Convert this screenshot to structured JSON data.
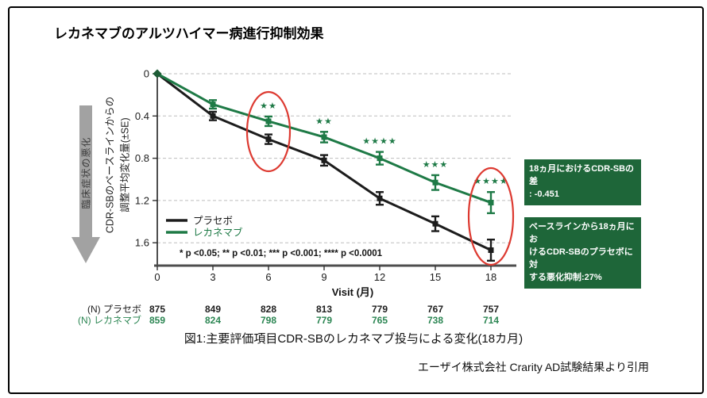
{
  "title": "レカネマブのアルツハイマー病進行抑制効果",
  "left_arrow_label": "臨床症状の悪化",
  "colors": {
    "placebo_black": "#1c1c1c",
    "lecanemab_green": "#1e7a46",
    "box_green": "#1e6639",
    "highlight_red": "#dd3a31",
    "arrow_gray": "#a2a2a2",
    "grid_gray": "#bdbdbd",
    "axis_gray": "#4e4e4e",
    "n_row_green": "#2c8653"
  },
  "chart_data": {
    "type": "line",
    "x": [
      0,
      3,
      6,
      9,
      12,
      15,
      18
    ],
    "xlabel": "Visit (月)",
    "ylabel": "CDR-SBのベースラインからの\n調整平均変化量(±SE)",
    "y_inverted": true,
    "ylim": [
      0,
      1.82
    ],
    "yticks": [
      0,
      0.4,
      0.8,
      1.2,
      1.6
    ],
    "grid": "horizontal-dashed",
    "legend_position": "inside-lower-left",
    "series": [
      {
        "name": "プラセボ",
        "color": "#1c1c1c",
        "values": [
          0,
          0.4,
          0.62,
          0.82,
          1.18,
          1.42,
          1.67
        ],
        "se": [
          0,
          0.04,
          0.045,
          0.05,
          0.06,
          0.07,
          0.1
        ]
      },
      {
        "name": "レカネマブ",
        "color": "#1e7a46",
        "values": [
          0,
          0.29,
          0.45,
          0.6,
          0.8,
          1.03,
          1.22
        ],
        "se": [
          0,
          0.04,
          0.045,
          0.05,
          0.06,
          0.07,
          0.1
        ]
      }
    ],
    "significance": [
      {
        "month": 6,
        "stars": 2
      },
      {
        "month": 9,
        "stars": 2
      },
      {
        "month": 12,
        "stars": 4
      },
      {
        "month": 15,
        "stars": 3
      },
      {
        "month": 18,
        "stars": 4
      }
    ],
    "star_char": "★",
    "highlight_months": [
      6,
      18
    ],
    "p_note": "* p <0.05; ** p <0.01; *** p <0.001; **** p <0.0001",
    "n_table": {
      "rows": [
        {
          "label": "(N) プラセボ",
          "color": "#1d1d1d",
          "values": [
            875,
            849,
            828,
            813,
            779,
            767,
            757
          ]
        },
        {
          "label": "(N) レカネマブ",
          "color": "#2c8653",
          "values": [
            859,
            824,
            798,
            779,
            765,
            738,
            714
          ]
        }
      ]
    }
  },
  "annotations": {
    "box1": "18ヵ月におけるCDR-SBの差\n: -0.451",
    "box2": "ベースラインから18ヵ月にお\nけるCDR-SBのプラセボに対\nする悪化抑制:27%"
  },
  "caption": "図1:主要評価項目CDR-SBのレカネマブ投与による変化(18カ月)",
  "source": "エーザイ株式会社 Crarity AD試験結果より引用"
}
